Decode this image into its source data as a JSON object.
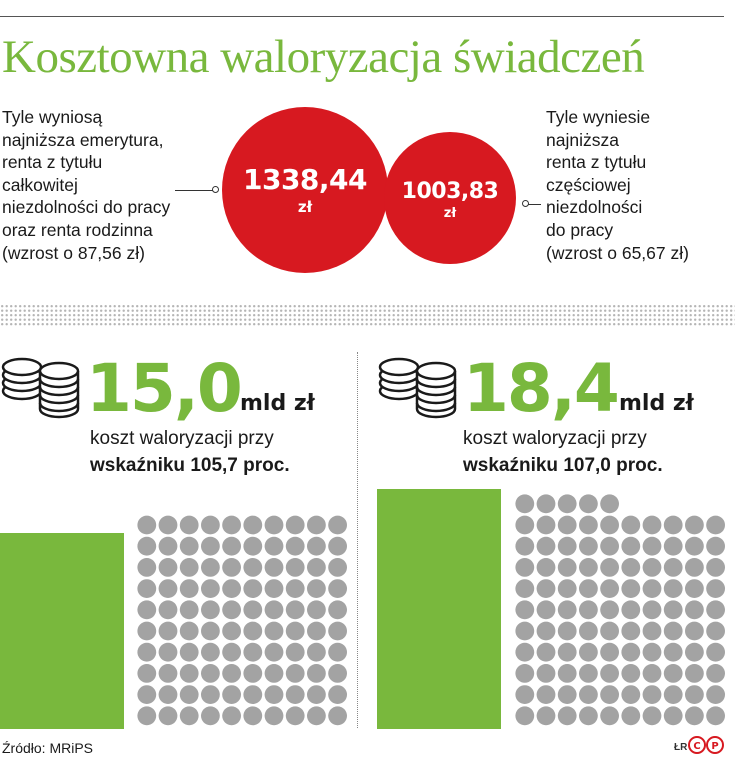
{
  "title": "Kosztowna waloryzacja świadczeń",
  "left_desc": [
    "Tyle wyniosą",
    "najniższa emerytura,",
    "renta z tytułu",
    "całkowitej",
    "niezdolności do pracy",
    "oraz renta rodzinna",
    "(wzrost o 87,56 zł)"
  ],
  "right_desc": [
    "Tyle wyniesie",
    "najniższa",
    "renta z tytułu",
    "częściowej",
    "niezdolności",
    "do pracy",
    "(wzrost o 65,67 zł)"
  ],
  "circle_left": {
    "value": "1338,44",
    "unit": "zł"
  },
  "circle_right": {
    "value": "1003,83",
    "unit": "zł"
  },
  "panel_left": {
    "amount": "15,0",
    "unit": "mld zł",
    "cost_label": "koszt waloryzacji przy",
    "index_label": "wskaźniku 105,7 proc.",
    "green_units": 15,
    "grey_dots": 85
  },
  "panel_right": {
    "amount": "18,4",
    "unit": "mld zł",
    "cost_label": "koszt waloryzacji przy",
    "index_label": "wskaźniku 107,0 proc.",
    "green_units": 18.4,
    "grey_dots": 80
  },
  "colors": {
    "accent_green": "#79b83d",
    "circle_red": "#d71920",
    "dot_grey": "#a3a3a3"
  },
  "icons": [
    "coin-stack-icon",
    "cp-logo-icon"
  ],
  "source": "Źródło: MRiPS",
  "credit": "ŁR",
  "logo_text": "CP"
}
